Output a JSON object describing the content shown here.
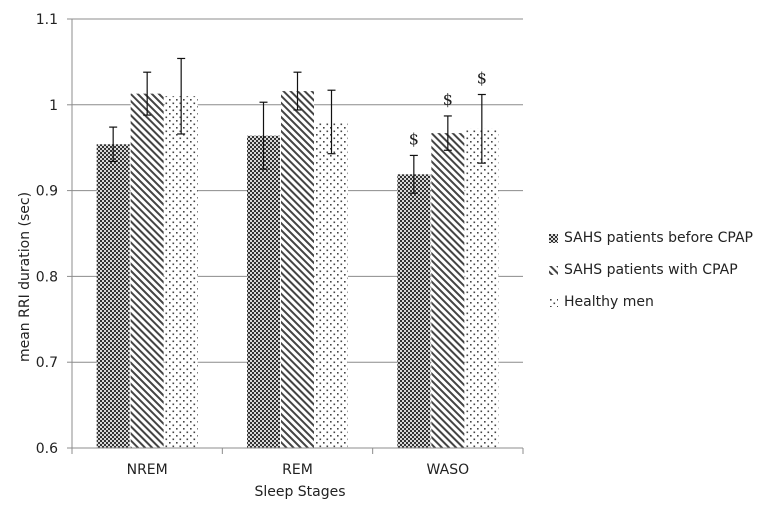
{
  "chart_data": {
    "type": "bar",
    "categories": [
      "NREM",
      "REM",
      "WASO"
    ],
    "series": [
      {
        "name": "SAHS patients before CPAP",
        "values": [
          0.954,
          0.964,
          0.919
        ],
        "errors": [
          0.02,
          0.039,
          0.022
        ],
        "pattern": "crosshatch"
      },
      {
        "name": "SAHS patients with CPAP",
        "values": [
          1.013,
          1.016,
          0.967
        ],
        "errors": [
          0.025,
          0.022,
          0.02
        ],
        "pattern": "diagonal"
      },
      {
        "name": "Healthy men",
        "values": [
          1.01,
          0.98,
          0.972
        ],
        "errors": [
          0.044,
          0.037,
          0.04
        ],
        "pattern": "dots"
      }
    ],
    "ylim": [
      0.6,
      1.1
    ],
    "yticks": [
      "0.6",
      "0.7",
      "0.8",
      "0.9",
      "1",
      "1.1"
    ],
    "xlabel": "Sleep Stages",
    "ylabel": "mean RRI duration (sec)",
    "grid": true,
    "legend_position": "right",
    "annotations": [
      {
        "text": "$",
        "category": "WASO",
        "series": 0
      },
      {
        "text": "$",
        "category": "WASO",
        "series": 1
      },
      {
        "text": "$",
        "category": "WASO",
        "series": 2
      }
    ]
  }
}
